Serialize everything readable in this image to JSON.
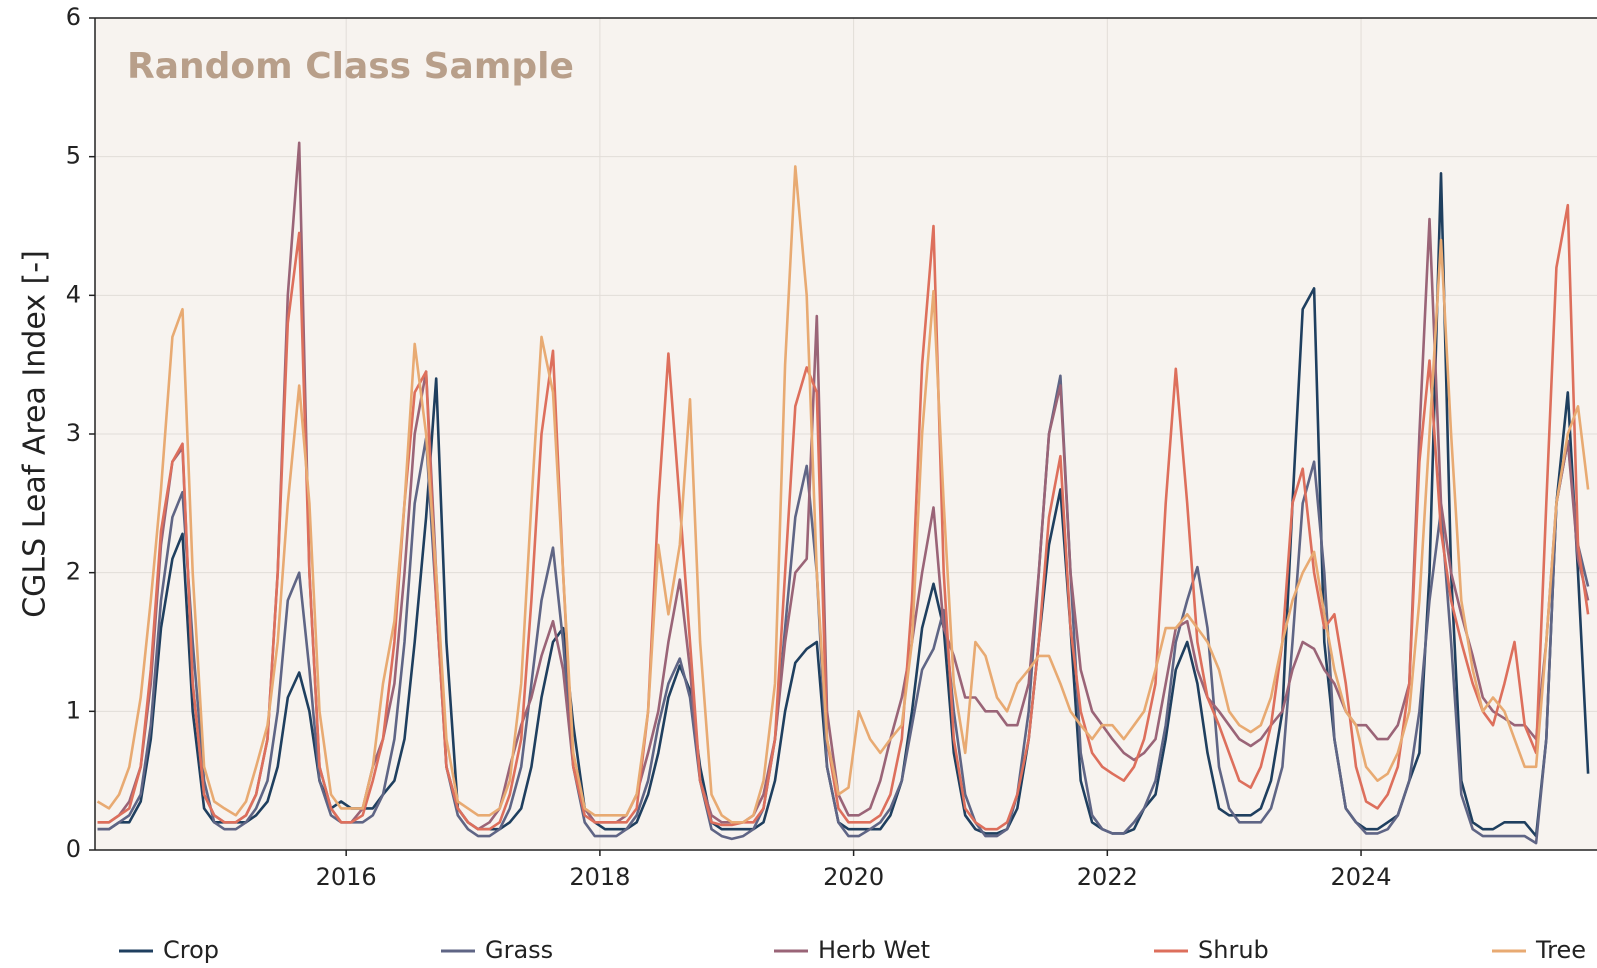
{
  "chart_data": {
    "type": "line",
    "title": "Random Class Sample",
    "y_label": "CGLS Leaf Area Index [-]",
    "xlim": [
      2014.02,
      2025.86
    ],
    "xticks": [
      2016,
      2018,
      2020,
      2022,
      2024
    ],
    "ylim": [
      0,
      6
    ],
    "yticks": [
      0,
      1,
      2,
      3,
      4,
      5,
      6
    ],
    "grid": true,
    "legend": "bottom",
    "x": [
      2014.04,
      2014.13,
      2014.21,
      2014.29,
      2014.38,
      2014.46,
      2014.54,
      2014.63,
      2014.71,
      2014.79,
      2014.88,
      2014.96,
      2015.04,
      2015.13,
      2015.21,
      2015.29,
      2015.38,
      2015.46,
      2015.54,
      2015.63,
      2015.71,
      2015.79,
      2015.88,
      2015.96,
      2016.04,
      2016.13,
      2016.21,
      2016.29,
      2016.38,
      2016.46,
      2016.54,
      2016.63,
      2016.71,
      2016.79,
      2016.88,
      2016.96,
      2017.04,
      2017.13,
      2017.21,
      2017.29,
      2017.38,
      2017.46,
      2017.54,
      2017.63,
      2017.71,
      2017.79,
      2017.88,
      2017.96,
      2018.04,
      2018.13,
      2018.21,
      2018.29,
      2018.38,
      2018.46,
      2018.54,
      2018.63,
      2018.71,
      2018.79,
      2018.88,
      2018.96,
      2019.04,
      2019.13,
      2019.21,
      2019.29,
      2019.38,
      2019.46,
      2019.54,
      2019.63,
      2019.71,
      2019.79,
      2019.88,
      2019.96,
      2020.04,
      2020.13,
      2020.21,
      2020.29,
      2020.38,
      2020.46,
      2020.54,
      2020.63,
      2020.71,
      2020.79,
      2020.88,
      2020.96,
      2021.04,
      2021.13,
      2021.21,
      2021.29,
      2021.38,
      2021.46,
      2021.54,
      2021.63,
      2021.71,
      2021.79,
      2021.88,
      2021.96,
      2022.04,
      2022.13,
      2022.21,
      2022.29,
      2022.38,
      2022.46,
      2022.54,
      2022.63,
      2022.71,
      2022.79,
      2022.88,
      2022.96,
      2023.04,
      2023.13,
      2023.21,
      2023.29,
      2023.38,
      2023.46,
      2023.54,
      2023.63,
      2023.71,
      2023.79,
      2023.88,
      2023.96,
      2024.04,
      2024.13,
      2024.21,
      2024.29,
      2024.38,
      2024.46,
      2024.54,
      2024.63,
      2024.71,
      2024.79,
      2024.88,
      2024.96,
      2025.04,
      2025.13,
      2025.21,
      2025.29,
      2025.38,
      2025.46,
      2025.54,
      2025.63,
      2025.71,
      2025.79
    ],
    "series": [
      {
        "name": "Crop",
        "color": "#1f3f5f",
        "values": [
          0.15,
          0.15,
          0.2,
          0.2,
          0.35,
          0.8,
          1.6,
          2.1,
          2.28,
          1.0,
          0.3,
          0.2,
          0.2,
          0.2,
          0.2,
          0.25,
          0.35,
          0.6,
          1.1,
          1.28,
          1.0,
          0.5,
          0.3,
          0.35,
          0.3,
          0.3,
          0.3,
          0.4,
          0.5,
          0.8,
          1.5,
          2.4,
          3.4,
          1.5,
          0.3,
          0.2,
          0.15,
          0.15,
          0.15,
          0.2,
          0.3,
          0.6,
          1.1,
          1.5,
          1.6,
          0.9,
          0.3,
          0.2,
          0.15,
          0.15,
          0.15,
          0.2,
          0.4,
          0.7,
          1.1,
          1.33,
          1.15,
          0.6,
          0.2,
          0.15,
          0.15,
          0.15,
          0.15,
          0.2,
          0.5,
          1.0,
          1.35,
          1.45,
          1.5,
          0.6,
          0.2,
          0.15,
          0.15,
          0.15,
          0.15,
          0.25,
          0.5,
          1.0,
          1.6,
          1.92,
          1.6,
          0.7,
          0.25,
          0.15,
          0.12,
          0.12,
          0.15,
          0.3,
          0.8,
          1.5,
          2.2,
          2.6,
          1.6,
          0.5,
          0.2,
          0.15,
          0.12,
          0.12,
          0.15,
          0.3,
          0.4,
          0.8,
          1.3,
          1.5,
          1.2,
          0.7,
          0.3,
          0.25,
          0.25,
          0.25,
          0.3,
          0.5,
          1.0,
          2.5,
          3.9,
          4.05,
          1.5,
          0.8,
          0.3,
          0.2,
          0.15,
          0.15,
          0.2,
          0.25,
          0.5,
          0.7,
          2.0,
          4.88,
          2.0,
          0.5,
          0.2,
          0.15,
          0.15,
          0.2,
          0.2,
          0.2,
          0.1,
          0.8,
          2.5,
          3.3,
          2.0,
          0.55
        ]
      },
      {
        "name": "Grass",
        "color": "#5f6585",
        "values": [
          0.15,
          0.15,
          0.2,
          0.25,
          0.4,
          0.9,
          1.8,
          2.4,
          2.58,
          1.5,
          0.5,
          0.2,
          0.15,
          0.15,
          0.2,
          0.3,
          0.5,
          1.0,
          1.8,
          2.0,
          1.3,
          0.5,
          0.25,
          0.2,
          0.2,
          0.2,
          0.25,
          0.4,
          0.8,
          1.5,
          2.5,
          2.97,
          1.8,
          0.6,
          0.25,
          0.15,
          0.1,
          0.1,
          0.15,
          0.3,
          0.6,
          1.2,
          1.8,
          2.18,
          1.5,
          0.6,
          0.2,
          0.1,
          0.1,
          0.1,
          0.15,
          0.25,
          0.5,
          0.9,
          1.2,
          1.38,
          1.1,
          0.5,
          0.15,
          0.1,
          0.08,
          0.1,
          0.15,
          0.3,
          0.8,
          1.6,
          2.4,
          2.77,
          2.0,
          0.6,
          0.2,
          0.1,
          0.1,
          0.15,
          0.2,
          0.3,
          0.5,
          0.9,
          1.3,
          1.45,
          1.73,
          1.0,
          0.4,
          0.2,
          0.1,
          0.1,
          0.15,
          0.4,
          1.0,
          2.0,
          3.0,
          3.42,
          2.0,
          0.7,
          0.25,
          0.15,
          0.12,
          0.12,
          0.2,
          0.3,
          0.5,
          0.9,
          1.5,
          1.8,
          2.04,
          1.6,
          0.6,
          0.3,
          0.2,
          0.2,
          0.2,
          0.3,
          0.6,
          1.5,
          2.5,
          2.8,
          2.0,
          0.8,
          0.3,
          0.2,
          0.12,
          0.12,
          0.15,
          0.25,
          0.5,
          1.0,
          1.8,
          2.45,
          1.5,
          0.4,
          0.15,
          0.1,
          0.1,
          0.1,
          0.1,
          0.1,
          0.05,
          0.8,
          2.5,
          2.95,
          2.2,
          1.9
        ]
      },
      {
        "name": "Herb Wet",
        "color": "#9a6477",
        "values": [
          0.2,
          0.2,
          0.25,
          0.35,
          0.6,
          1.2,
          2.2,
          2.8,
          2.9,
          1.2,
          0.4,
          0.25,
          0.2,
          0.2,
          0.25,
          0.4,
          0.8,
          2.0,
          4.0,
          5.1,
          2.0,
          0.6,
          0.3,
          0.2,
          0.2,
          0.3,
          0.6,
          0.8,
          1.2,
          2.0,
          3.0,
          3.45,
          2.0,
          0.6,
          0.3,
          0.2,
          0.15,
          0.2,
          0.3,
          0.6,
          0.9,
          1.1,
          1.4,
          1.65,
          1.3,
          0.6,
          0.3,
          0.2,
          0.2,
          0.2,
          0.25,
          0.4,
          0.7,
          1.0,
          1.5,
          1.95,
          1.3,
          0.5,
          0.25,
          0.2,
          0.2,
          0.2,
          0.25,
          0.4,
          0.8,
          1.5,
          2.0,
          2.1,
          3.85,
          1.0,
          0.4,
          0.25,
          0.25,
          0.3,
          0.5,
          0.8,
          1.1,
          1.5,
          2.0,
          2.47,
          1.6,
          1.4,
          1.1,
          1.1,
          1.0,
          1.0,
          0.9,
          0.9,
          1.2,
          2.0,
          3.0,
          3.35,
          2.0,
          1.3,
          1.0,
          0.9,
          0.8,
          0.7,
          0.65,
          0.7,
          0.8,
          1.2,
          1.6,
          1.65,
          1.3,
          1.1,
          1.0,
          0.9,
          0.8,
          0.75,
          0.8,
          0.9,
          1.0,
          1.3,
          1.5,
          1.45,
          1.3,
          1.2,
          1.0,
          0.9,
          0.9,
          0.8,
          0.8,
          0.9,
          1.2,
          3.0,
          4.55,
          2.5,
          2.0,
          1.7,
          1.4,
          1.1,
          1.0,
          0.95,
          0.9,
          0.9,
          0.8,
          1.5,
          2.5,
          2.95,
          2.1,
          1.8
        ]
      },
      {
        "name": "Shrub",
        "color": "#dd6f5c",
        "values": [
          0.2,
          0.2,
          0.25,
          0.3,
          0.6,
          1.3,
          2.3,
          2.8,
          2.93,
          1.2,
          0.4,
          0.25,
          0.2,
          0.2,
          0.25,
          0.4,
          0.8,
          2.0,
          3.8,
          4.45,
          2.0,
          0.6,
          0.3,
          0.2,
          0.2,
          0.25,
          0.5,
          0.8,
          1.5,
          2.5,
          3.3,
          3.45,
          1.8,
          0.6,
          0.3,
          0.2,
          0.15,
          0.15,
          0.2,
          0.4,
          0.8,
          1.8,
          3.0,
          3.6,
          2.0,
          0.6,
          0.25,
          0.2,
          0.2,
          0.2,
          0.2,
          0.3,
          1.0,
          2.5,
          3.58,
          2.5,
          1.5,
          0.5,
          0.2,
          0.18,
          0.18,
          0.2,
          0.2,
          0.3,
          0.8,
          2.0,
          3.2,
          3.48,
          3.3,
          0.8,
          0.3,
          0.2,
          0.2,
          0.2,
          0.25,
          0.4,
          0.8,
          1.8,
          3.5,
          4.5,
          2.0,
          0.8,
          0.3,
          0.2,
          0.15,
          0.15,
          0.2,
          0.4,
          0.8,
          1.5,
          2.4,
          2.84,
          1.6,
          1.0,
          0.7,
          0.6,
          0.55,
          0.5,
          0.6,
          0.8,
          1.2,
          2.5,
          3.47,
          2.5,
          1.5,
          1.1,
          0.9,
          0.7,
          0.5,
          0.45,
          0.6,
          0.9,
          1.5,
          2.5,
          2.75,
          2.0,
          1.6,
          1.7,
          1.2,
          0.6,
          0.35,
          0.3,
          0.4,
          0.6,
          1.2,
          2.8,
          3.53,
          2.3,
          1.8,
          1.5,
          1.2,
          1.0,
          0.9,
          1.2,
          1.5,
          0.9,
          0.7,
          2.5,
          4.2,
          4.65,
          2.2,
          1.7
        ]
      },
      {
        "name": "Tree",
        "color": "#e8aa72",
        "values": [
          0.35,
          0.3,
          0.4,
          0.6,
          1.1,
          1.8,
          2.6,
          3.7,
          3.9,
          2.0,
          0.6,
          0.35,
          0.3,
          0.25,
          0.35,
          0.6,
          0.9,
          1.5,
          2.5,
          3.35,
          2.5,
          1.0,
          0.4,
          0.3,
          0.3,
          0.3,
          0.6,
          1.2,
          1.65,
          2.5,
          3.65,
          3.0,
          2.0,
          0.8,
          0.35,
          0.3,
          0.25,
          0.25,
          0.3,
          0.5,
          1.2,
          2.5,
          3.7,
          3.3,
          2.0,
          0.7,
          0.3,
          0.25,
          0.25,
          0.25,
          0.25,
          0.4,
          1.0,
          2.2,
          1.7,
          2.2,
          3.25,
          1.5,
          0.4,
          0.25,
          0.2,
          0.2,
          0.25,
          0.5,
          1.2,
          3.5,
          4.93,
          4.0,
          2.0,
          0.8,
          0.4,
          0.45,
          1.0,
          0.8,
          0.7,
          0.8,
          0.9,
          1.5,
          3.0,
          4.03,
          2.5,
          1.2,
          0.7,
          1.5,
          1.4,
          1.1,
          1.0,
          1.2,
          1.3,
          1.4,
          1.4,
          1.2,
          1.0,
          0.9,
          0.8,
          0.9,
          0.9,
          0.8,
          0.9,
          1.0,
          1.3,
          1.6,
          1.6,
          1.7,
          1.6,
          1.5,
          1.3,
          1.0,
          0.9,
          0.85,
          0.9,
          1.1,
          1.5,
          1.8,
          2.0,
          2.15,
          1.7,
          1.3,
          1.0,
          0.9,
          0.6,
          0.5,
          0.55,
          0.7,
          1.0,
          1.8,
          3.0,
          4.4,
          3.0,
          1.8,
          1.3,
          1.0,
          1.1,
          1.0,
          0.8,
          0.6,
          0.6,
          1.5,
          2.5,
          3.0,
          3.2,
          2.6
        ]
      }
    ]
  }
}
